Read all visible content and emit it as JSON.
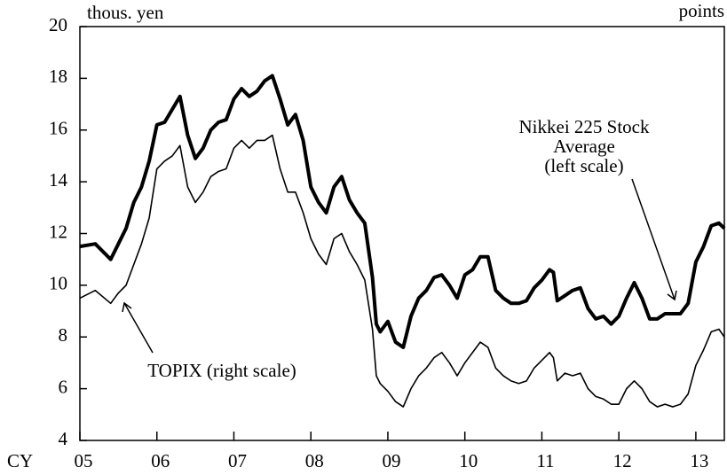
{
  "chart_data": {
    "type": "line",
    "ylabel": "thous. yen",
    "y2label": "points",
    "xlabel": "CY",
    "x": [
      2005.0,
      2005.2,
      2005.4,
      2005.5,
      2005.6,
      2005.7,
      2005.8,
      2005.9,
      2006.0,
      2006.1,
      2006.2,
      2006.3,
      2006.4,
      2006.5,
      2006.6,
      2006.7,
      2006.8,
      2006.9,
      2007.0,
      2007.1,
      2007.2,
      2007.3,
      2007.4,
      2007.5,
      2007.6,
      2007.7,
      2007.8,
      2007.9,
      2008.0,
      2008.1,
      2008.2,
      2008.3,
      2008.4,
      2008.5,
      2008.6,
      2008.7,
      2008.8,
      2008.85,
      2008.9,
      2009.0,
      2009.1,
      2009.2,
      2009.3,
      2009.4,
      2009.5,
      2009.6,
      2009.7,
      2009.8,
      2009.9,
      2010.0,
      2010.1,
      2010.2,
      2010.3,
      2010.4,
      2010.5,
      2010.6,
      2010.7,
      2010.8,
      2010.9,
      2011.0,
      2011.1,
      2011.15,
      2011.2,
      2011.3,
      2011.4,
      2011.5,
      2011.6,
      2011.7,
      2011.8,
      2011.9,
      2012.0,
      2012.1,
      2012.2,
      2012.3,
      2012.4,
      2012.5,
      2012.6,
      2012.7,
      2012.8,
      2012.9,
      2013.0,
      2013.1,
      2013.2,
      2013.3,
      2013.37
    ],
    "series": [
      {
        "name": "Nikkei 225 Stock Average",
        "color": "#000000",
        "axis": "y",
        "width": 4,
        "values": [
          11.5,
          11.6,
          11.0,
          11.6,
          12.2,
          13.2,
          13.8,
          14.8,
          16.2,
          16.3,
          16.8,
          17.3,
          15.8,
          14.9,
          15.3,
          16.0,
          16.3,
          16.4,
          17.2,
          17.6,
          17.3,
          17.5,
          17.9,
          18.1,
          17.2,
          16.2,
          16.6,
          15.6,
          13.8,
          13.2,
          12.8,
          13.8,
          14.2,
          13.3,
          12.8,
          12.4,
          10.3,
          8.5,
          8.2,
          8.6,
          7.8,
          7.6,
          8.8,
          9.5,
          9.8,
          10.3,
          10.4,
          10.0,
          9.5,
          10.4,
          10.6,
          11.1,
          11.1,
          9.8,
          9.5,
          9.3,
          9.3,
          9.4,
          9.9,
          10.2,
          10.6,
          10.5,
          9.4,
          9.6,
          9.8,
          9.9,
          9.1,
          8.7,
          8.8,
          8.5,
          8.8,
          9.5,
          10.1,
          9.5,
          8.7,
          8.7,
          8.9,
          8.9,
          8.9,
          9.3,
          10.9,
          11.5,
          12.3,
          12.4,
          12.2
        ]
      },
      {
        "name": "TOPIX",
        "color": "#000000",
        "axis": "y2",
        "width": 1.6,
        "values": [
          1150,
          1180,
          1130,
          1170,
          1200,
          1280,
          1360,
          1460,
          1650,
          1680,
          1700,
          1740,
          1580,
          1520,
          1560,
          1620,
          1640,
          1650,
          1730,
          1760,
          1730,
          1760,
          1760,
          1780,
          1650,
          1560,
          1560,
          1480,
          1380,
          1320,
          1280,
          1380,
          1400,
          1330,
          1280,
          1220,
          1030,
          850,
          820,
          790,
          750,
          730,
          800,
          850,
          880,
          920,
          940,
          900,
          850,
          900,
          940,
          980,
          960,
          880,
          850,
          830,
          820,
          830,
          880,
          910,
          940,
          920,
          830,
          860,
          850,
          860,
          800,
          770,
          760,
          740,
          740,
          800,
          830,
          800,
          750,
          730,
          740,
          730,
          740,
          780,
          890,
          950,
          1020,
          1030,
          1000
        ]
      }
    ],
    "xlim": [
      2005,
      2013.37
    ],
    "xticks": [
      {
        "value": 2005,
        "label": "05"
      },
      {
        "value": 2006,
        "label": "06"
      },
      {
        "value": 2007,
        "label": "07"
      },
      {
        "value": 2008,
        "label": "08"
      },
      {
        "value": 2009,
        "label": "09"
      },
      {
        "value": 2010,
        "label": "10"
      },
      {
        "value": 2011,
        "label": "11"
      },
      {
        "value": 2012,
        "label": "12"
      },
      {
        "value": 2013,
        "label": "13"
      }
    ],
    "ylim": [
      4,
      20
    ],
    "yticks": [
      4,
      6,
      8,
      10,
      12,
      14,
      16,
      18,
      20
    ],
    "y2lim": [
      600,
      2200
    ],
    "annotations": [
      {
        "lines": [
          "TOPIX (right scale)"
        ]
      },
      {
        "lines": [
          "Nikkei 225 Stock",
          "Average",
          "(left scale)"
        ]
      }
    ]
  }
}
